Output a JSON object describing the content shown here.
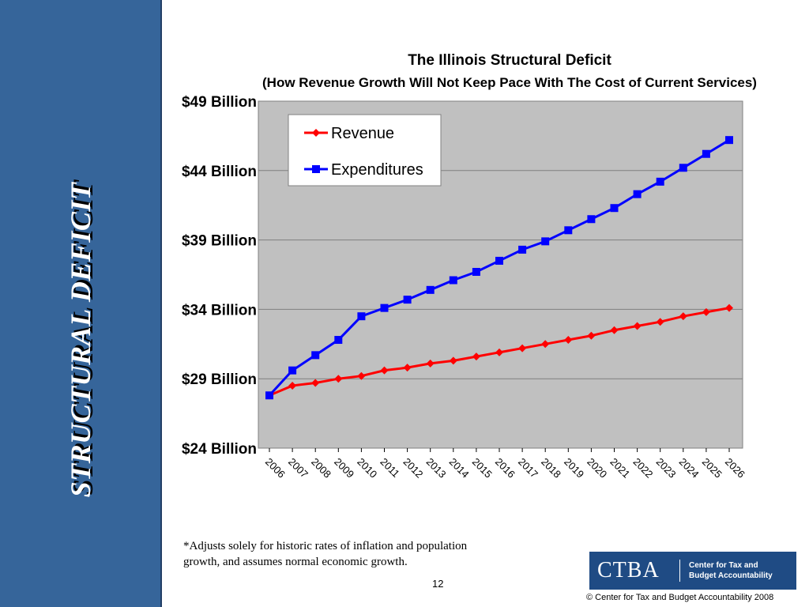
{
  "sidebar": {
    "title": "STRUCTURAL DEFICIT"
  },
  "chart_data": {
    "type": "line",
    "title": "The Illinois Structural Deficit",
    "subtitle": "(How Revenue Growth Will Not Keep Pace With The Cost of Current Services)",
    "xlabel": "",
    "ylabel": "",
    "categories": [
      "2006",
      "2007",
      "2008",
      "2009",
      "2010",
      "2011",
      "2012",
      "2013",
      "2014",
      "2015",
      "2016",
      "2017",
      "2018",
      "2019",
      "2020",
      "2021",
      "2022",
      "2023",
      "2024",
      "2025",
      "2026"
    ],
    "ylim": [
      24,
      49
    ],
    "yticks": [
      24,
      29,
      34,
      39,
      44,
      49
    ],
    "ytick_labels": [
      "$24 Billion",
      "$29 Billion",
      "$34 Billion",
      "$39 Billion",
      "$44 Billion",
      "$49 Billion"
    ],
    "grid": true,
    "legend_position": "top-left",
    "series": [
      {
        "name": "Revenue",
        "color": "#ff0000",
        "marker": "diamond",
        "values": [
          27.8,
          28.5,
          28.7,
          29.0,
          29.2,
          29.6,
          29.8,
          30.1,
          30.3,
          30.6,
          30.9,
          31.2,
          31.5,
          31.8,
          32.1,
          32.5,
          32.8,
          33.1,
          33.5,
          33.8,
          34.1
        ]
      },
      {
        "name": "Expenditures",
        "color": "#0000ff",
        "marker": "square",
        "values": [
          27.8,
          29.6,
          30.7,
          31.8,
          33.5,
          34.1,
          34.7,
          35.4,
          36.1,
          36.7,
          37.5,
          38.3,
          38.9,
          39.7,
          40.5,
          41.3,
          42.3,
          43.2,
          44.2,
          45.2,
          46.2
        ]
      }
    ]
  },
  "footnote": "*Adjusts solely for historic rates of inflation and population growth, and assumes normal economic growth.",
  "page_number": "12",
  "logo": {
    "abbr": "CTBA",
    "name_line1": "Center for Tax and",
    "name_line2": "Budget Accountability"
  },
  "copyright": "©  Center for Tax and Budget Accountability 2008"
}
